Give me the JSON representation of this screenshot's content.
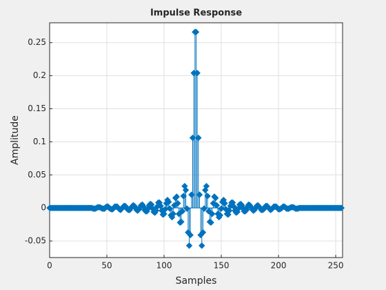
{
  "chart_data": {
    "type": "stem",
    "title": "Impulse Response",
    "x_label": "Samples",
    "y_label": "Amplitude",
    "color": "#0072bd",
    "grid": true,
    "marker": "diamond",
    "xlim": [
      0,
      256
    ],
    "ylim": [
      -0.075,
      0.28
    ],
    "xticks": [
      0,
      50,
      100,
      150,
      200,
      250
    ],
    "yticks": [
      -0.05,
      0,
      0.05,
      0.1,
      0.15,
      0.2,
      0.25
    ],
    "x": [
      0,
      1,
      2,
      3,
      4,
      5,
      6,
      7,
      8,
      9,
      10,
      11,
      12,
      13,
      14,
      15,
      16,
      17,
      18,
      19,
      20,
      21,
      22,
      23,
      24,
      25,
      26,
      27,
      28,
      29,
      30,
      31,
      32,
      33,
      34,
      35,
      36,
      37,
      38,
      39,
      40,
      41,
      42,
      43,
      44,
      45,
      46,
      47,
      48,
      49,
      50,
      51,
      52,
      53,
      54,
      55,
      56,
      57,
      58,
      59,
      60,
      61,
      62,
      63,
      64,
      65,
      66,
      67,
      68,
      69,
      70,
      71,
      72,
      73,
      74,
      75,
      76,
      77,
      78,
      79,
      80,
      81,
      82,
      83,
      84,
      85,
      86,
      87,
      88,
      89,
      90,
      91,
      92,
      93,
      94,
      95,
      96,
      97,
      98,
      99,
      100,
      101,
      102,
      103,
      104,
      105,
      106,
      107,
      108,
      109,
      110,
      111,
      112,
      113,
      114,
      115,
      116,
      117,
      118,
      119,
      120,
      121,
      122,
      123,
      124,
      125,
      126,
      127,
      128,
      129,
      130,
      131,
      132,
      133,
      134,
      135,
      136,
      137,
      138,
      139,
      140,
      141,
      142,
      143,
      144,
      145,
      146,
      147,
      148,
      149,
      150,
      151,
      152,
      153,
      154,
      155,
      156,
      157,
      158,
      159,
      160,
      161,
      162,
      163,
      164,
      165,
      166,
      167,
      168,
      169,
      170,
      171,
      172,
      173,
      174,
      175,
      176,
      177,
      178,
      179,
      180,
      181,
      182,
      183,
      184,
      185,
      186,
      187,
      188,
      189,
      190,
      191,
      192,
      193,
      194,
      195,
      196,
      197,
      198,
      199,
      200,
      201,
      202,
      203,
      204,
      205,
      206,
      207,
      208,
      209,
      210,
      211,
      212,
      213,
      214,
      215,
      216,
      217,
      218,
      219,
      220,
      221,
      222,
      223,
      224,
      225,
      226,
      227,
      228,
      229,
      230,
      231,
      232,
      233,
      234,
      235,
      236,
      237,
      238,
      239,
      240,
      241,
      242,
      243,
      244,
      245,
      246,
      247,
      248,
      249,
      250,
      251,
      252,
      253,
      254,
      255
    ],
    "values": [
      0,
      0,
      0,
      0,
      0,
      0,
      0,
      0,
      0,
      0,
      0,
      0,
      0,
      0,
      0,
      0,
      0,
      0,
      0,
      0,
      0,
      0,
      0,
      0,
      0,
      0,
      0,
      0,
      0,
      0,
      0,
      0,
      0,
      0,
      0,
      0,
      0,
      0,
      -0.001,
      -0.001,
      -0.001,
      0,
      0.001,
      0.001,
      0.001,
      0,
      -0.001,
      -0.001,
      -0.001,
      0.001,
      0.002,
      0.002,
      0,
      -0.001,
      -0.002,
      -0.002,
      0,
      0.002,
      0.002,
      0.002,
      0,
      -0.002,
      -0.003,
      -0.001,
      0.001,
      0.003,
      0.003,
      0.001,
      -0.002,
      -0.003,
      -0.003,
      0,
      0.002,
      0.004,
      0.003,
      0,
      -0.003,
      -0.004,
      -0.002,
      0.001,
      0.004,
      0.005,
      0.002,
      -0.003,
      -0.005,
      -0.005,
      -0.001,
      0.004,
      0.006,
      0.005,
      -0.001,
      -0.006,
      -0.007,
      -0.004,
      0.002,
      0.008,
      0.008,
      0.003,
      -0.004,
      -0.01,
      -0.009,
      -0.002,
      0.007,
      0.012,
      0.009,
      -0.001,
      -0.011,
      -0.014,
      -0.009,
      0.004,
      0.015,
      0.017,
      0.007,
      -0.009,
      -0.022,
      -0.021,
      -0.005,
      0.018,
      0.033,
      0.027,
      -0.001,
      -0.037,
      -0.057,
      -0.041,
      0.02,
      0.106,
      0.204,
      0.266,
      0.266,
      0.204,
      0.106,
      0.02,
      -0.041,
      -0.057,
      -0.037,
      -0.001,
      0.027,
      0.033,
      0.018,
      -0.005,
      -0.021,
      -0.022,
      -0.009,
      0.007,
      0.017,
      0.015,
      0.004,
      -0.009,
      -0.014,
      -0.011,
      -0.001,
      0.009,
      0.012,
      0.007,
      -0.002,
      -0.009,
      -0.01,
      -0.004,
      0.003,
      0.008,
      0.008,
      0.002,
      -0.004,
      -0.007,
      -0.006,
      -0.001,
      0.005,
      0.006,
      0.004,
      -0.001,
      -0.005,
      -0.005,
      -0.003,
      0.002,
      0.005,
      0.004,
      0.001,
      -0.002,
      -0.004,
      -0.003,
      0,
      0.003,
      0.004,
      0.002,
      0,
      -0.003,
      -0.003,
      -0.002,
      0.001,
      0.003,
      0.003,
      0.001,
      -0.001,
      -0.003,
      -0.002,
      0,
      0.002,
      0.002,
      0.002,
      0,
      -0.002,
      -0.002,
      -0.001,
      0,
      0.002,
      0.002,
      0.001,
      -0.001,
      -0.001,
      -0.001,
      0,
      0.001,
      0.001,
      0.001,
      0,
      -0.001,
      -0.001,
      -0.001,
      0,
      0,
      0,
      0,
      0,
      0,
      0,
      0,
      0,
      0,
      0,
      0,
      0,
      0,
      0,
      0,
      0,
      0,
      0,
      0,
      0,
      0,
      0,
      0,
      0,
      0,
      0,
      0,
      0,
      0,
      0,
      0,
      0,
      0,
      0,
      0,
      0,
      0
    ]
  }
}
